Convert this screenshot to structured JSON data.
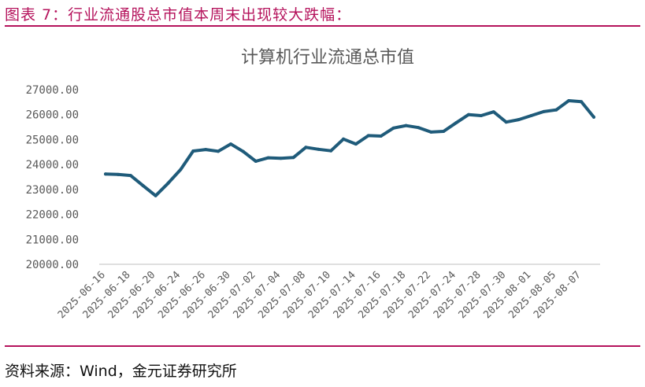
{
  "figure": {
    "caption": "图表 7：行业流通股总市值本周末出现较大跌幅：",
    "source": "资料来源：Wind，金元证券研究所"
  },
  "colors": {
    "line": "#1f5b7a",
    "accent": "#b5135c",
    "axis_text": "#595959",
    "title_text": "#595959"
  },
  "chart_data": {
    "type": "line",
    "title": "计算机行业流通总市值",
    "xlabel": "",
    "ylabel": "",
    "ylim": [
      20000,
      27000
    ],
    "yticks": [
      "27000.00",
      "26000.00",
      "25000.00",
      "24000.00",
      "23000.00",
      "22000.00",
      "21000.00",
      "20000.00"
    ],
    "grid": false,
    "legend": "none",
    "x": [
      "2025-06-16",
      "2025-06-17",
      "2025-06-18",
      "2025-06-19",
      "2025-06-20",
      "2025-06-23",
      "2025-06-24",
      "2025-06-25",
      "2025-06-26",
      "2025-06-27",
      "2025-06-30",
      "2025-07-01",
      "2025-07-02",
      "2025-07-03",
      "2025-07-04",
      "2025-07-07",
      "2025-07-08",
      "2025-07-09",
      "2025-07-10",
      "2025-07-11",
      "2025-07-14",
      "2025-07-15",
      "2025-07-16",
      "2025-07-17",
      "2025-07-18",
      "2025-07-21",
      "2025-07-22",
      "2025-07-23",
      "2025-07-24",
      "2025-07-25",
      "2025-07-28",
      "2025-07-29",
      "2025-07-30",
      "2025-07-31",
      "2025-08-01",
      "2025-08-04",
      "2025-08-05",
      "2025-08-06",
      "2025-08-07",
      "2025-08-08"
    ],
    "xticks": [
      "2025-06-16",
      "2025-06-18",
      "2025-06-20",
      "2025-06-24",
      "2025-06-26",
      "2025-06-30",
      "2025-07-02",
      "2025-07-04",
      "2025-07-08",
      "2025-07-10",
      "2025-07-14",
      "2025-07-16",
      "2025-07-18",
      "2025-07-22",
      "2025-07-24",
      "2025-07-28",
      "2025-07-30",
      "2025-08-01",
      "2025-08-05",
      "2025-08-07"
    ],
    "values": [
      23620,
      23600,
      23560,
      23150,
      22750,
      23250,
      23800,
      24540,
      24600,
      24530,
      24820,
      24520,
      24130,
      24270,
      24250,
      24280,
      24690,
      24610,
      24550,
      25020,
      24820,
      25160,
      25140,
      25460,
      25560,
      25480,
      25300,
      25330,
      25670,
      26000,
      25960,
      26110,
      25700,
      25800,
      25960,
      26120,
      26190,
      26560,
      26520,
      25900
    ]
  }
}
